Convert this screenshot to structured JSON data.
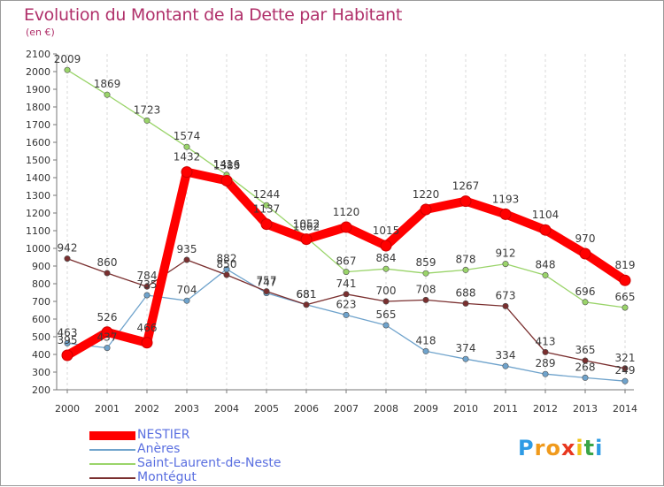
{
  "title": "Evolution du Montant de la Dette par Habitant",
  "unit": "(en €)",
  "logo": {
    "letters": [
      "P",
      "r",
      "o",
      "x",
      "i",
      "t",
      "i"
    ],
    "colors": [
      "#2e9be5",
      "#f09a1c",
      "#f09a1c",
      "#e8371f",
      "#f0c419",
      "#3aa547",
      "#2e9be5"
    ]
  },
  "chart_data": {
    "type": "line",
    "title": "Evolution du Montant de la Dette par Habitant",
    "ylabel": "(en €)",
    "xlabel": "",
    "x": [
      "2000",
      "2001",
      "2002",
      "2003",
      "2004",
      "2005",
      "2006",
      "2007",
      "2008",
      "2009",
      "2010",
      "2011",
      "2012",
      "2013",
      "2014"
    ],
    "ylim": [
      200,
      2100
    ],
    "yticks": [
      "200",
      "300",
      "400",
      "500",
      "600",
      "700",
      "800",
      "900",
      "1000",
      "1100",
      "1200",
      "1300",
      "1400",
      "1500",
      "1600",
      "1700",
      "1800",
      "1900",
      "2000",
      "2100"
    ],
    "grid": "vertical dashed",
    "legend_position": "bottom-left",
    "series": [
      {
        "name": "NESTIER",
        "color": "#ff0000",
        "values": [
          395,
          526,
          466,
          1432,
          1383,
          1137,
          1052,
          1120,
          1015,
          1220,
          1267,
          1193,
          1104,
          970,
          819
        ],
        "labels": [
          "395",
          "526",
          "466",
          "1432",
          "1383",
          "1137",
          "1052",
          "1120",
          "1015",
          "1220",
          "1267",
          "1193",
          "1104",
          "970",
          "819"
        ]
      },
      {
        "name": "Anères",
        "color": "#6fa3cc",
        "values": [
          463,
          437,
          735,
          704,
          882,
          747,
          681,
          623,
          565,
          418,
          374,
          334,
          289,
          268,
          249
        ],
        "labels": [
          "463",
          "437",
          "735",
          "704",
          "882",
          "747",
          "681",
          "623",
          "565",
          "418",
          "374",
          "334",
          "289",
          "268",
          "249"
        ]
      },
      {
        "name": "Saint-Laurent-de-Neste",
        "color": "#9ad46a",
        "values": [
          2009,
          1869,
          1723,
          1574,
          1416,
          1244,
          1062,
          867,
          884,
          859,
          878,
          912,
          848,
          696,
          665
        ],
        "labels": [
          "2009",
          "1869",
          "1723",
          "1574",
          "1416",
          "1244",
          "1062",
          "867",
          "884",
          "859",
          "878",
          "912",
          "848",
          "696",
          "665"
        ]
      },
      {
        "name": "Montégut",
        "color": "#7a2f2f",
        "values": [
          942,
          860,
          784,
          935,
          850,
          757,
          681,
          741,
          700,
          708,
          688,
          673,
          413,
          365,
          321
        ],
        "labels": [
          "942",
          "860",
          "784",
          "935",
          "850",
          "757",
          "681",
          "741",
          "700",
          "708",
          "688",
          "673",
          "413",
          "365",
          "321"
        ]
      }
    ]
  }
}
